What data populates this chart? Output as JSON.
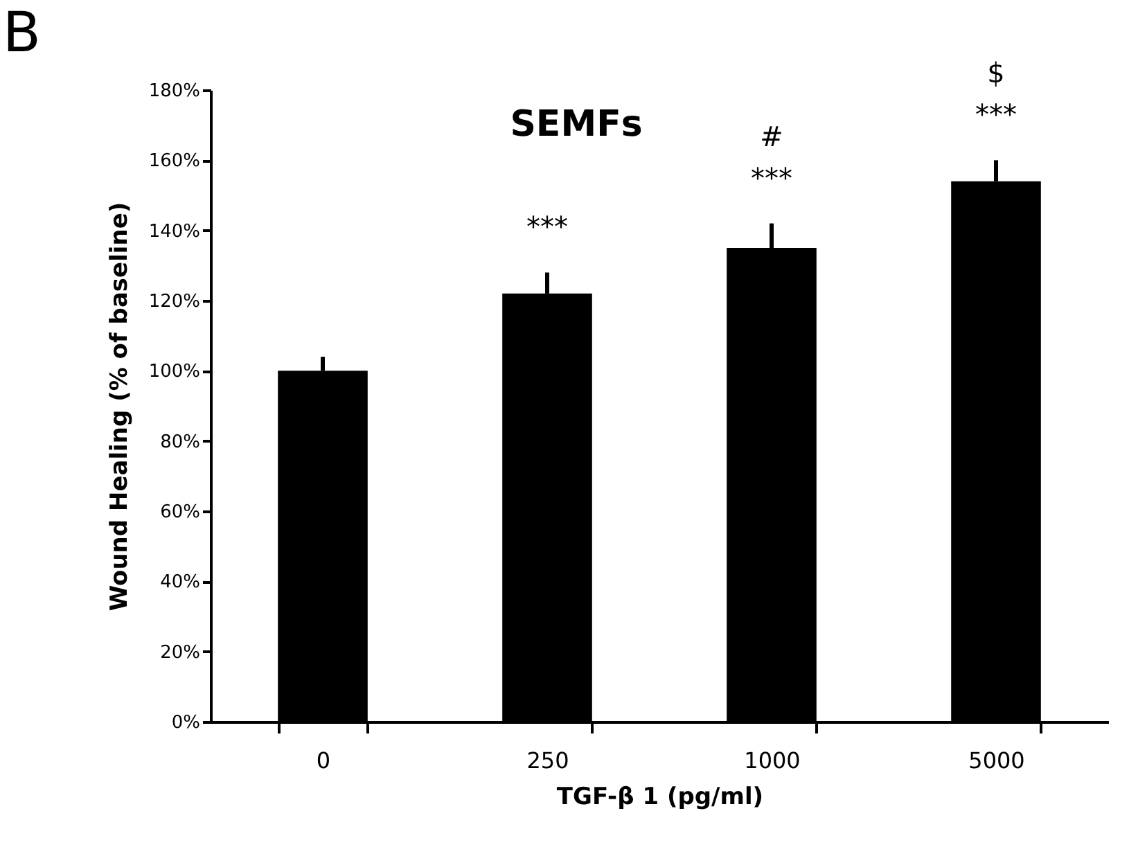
{
  "chart_data": {
    "type": "bar",
    "title": "SEMFs",
    "xlabel": "TGF-β 1 (pg/ml)",
    "ylabel": "Wound Healing (% of baseline)",
    "categories": [
      "0",
      "250",
      "1000",
      "5000"
    ],
    "values": [
      100,
      122,
      135,
      154
    ],
    "errors": [
      [
        100,
        104
      ],
      [
        122,
        128
      ],
      [
        135,
        142
      ],
      [
        154,
        160
      ]
    ],
    "color": "#000000",
    "ylim": [
      0,
      180
    ],
    "yticks": [
      {
        "value": 0,
        "label": "0%"
      },
      {
        "value": 20,
        "label": "20%"
      },
      {
        "value": 40,
        "label": "40%"
      },
      {
        "value": 60,
        "label": "60%"
      },
      {
        "value": 80,
        "label": "80%"
      },
      {
        "value": 100,
        "label": "100%"
      },
      {
        "value": 120,
        "label": "120%"
      },
      {
        "value": 140,
        "label": "140%"
      },
      {
        "value": 160,
        "label": "160%"
      },
      {
        "value": 180,
        "label": "180%"
      }
    ],
    "grid": false,
    "annotations": [
      "B",
      "***",
      "***",
      "#",
      "***",
      "$"
    ]
  }
}
